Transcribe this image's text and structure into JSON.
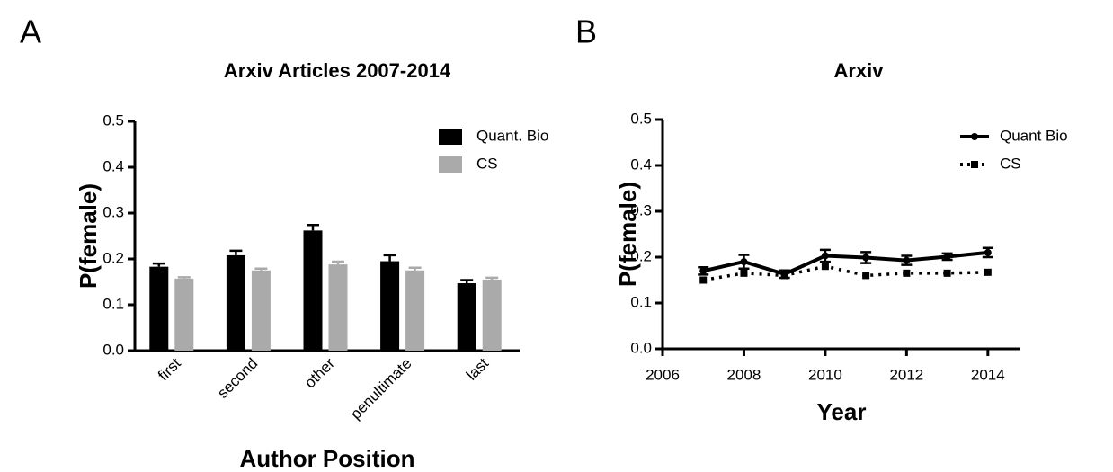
{
  "chart_data": [
    {
      "type": "bar",
      "panel": "A",
      "title": "Arxiv Articles 2007-2014",
      "x_label": "Author Position",
      "y_label": "P(female)",
      "categories": [
        "first",
        "second",
        "other",
        "penultimate",
        "last"
      ],
      "series": [
        {
          "name": "Quant. Bio",
          "color": "#000000",
          "values": [
            0.183,
            0.208,
            0.262,
            0.195,
            0.147
          ],
          "errors": [
            0.007,
            0.01,
            0.012,
            0.013,
            0.007
          ]
        },
        {
          "name": "CS",
          "color": "#aaaaaa",
          "values": [
            0.157,
            0.175,
            0.188,
            0.175,
            0.155
          ],
          "errors": [
            0.003,
            0.004,
            0.006,
            0.006,
            0.004
          ]
        }
      ],
      "ylim": [
        0,
        0.5
      ],
      "yticks": [
        {
          "value": 0,
          "label": "0.0"
        },
        0.1,
        0.2,
        0.3,
        0.4,
        0.5
      ],
      "legend": "top-right"
    },
    {
      "type": "line",
      "panel": "B",
      "title": "Arxiv",
      "x_label": "Year",
      "y_label": "P(female)",
      "x": [
        2007,
        2008,
        2009,
        2010,
        2011,
        2012,
        2013,
        2014
      ],
      "series": [
        {
          "name": "Quant Bio",
          "color": "#000000",
          "dash": false,
          "values": [
            0.17,
            0.19,
            0.163,
            0.203,
            0.199,
            0.193,
            0.201,
            0.21
          ],
          "errors": [
            0.008,
            0.015,
            0.008,
            0.013,
            0.012,
            0.01,
            0.007,
            0.01
          ]
        },
        {
          "name": "CS",
          "color": "#000000",
          "dash": true,
          "values": [
            0.15,
            0.165,
            0.16,
            0.18,
            0.16,
            0.165,
            0.165,
            0.167
          ]
        }
      ],
      "xlim": [
        2006,
        2014.8
      ],
      "xticks": [
        2006,
        2008,
        2010,
        2012,
        2014
      ],
      "ylim": [
        0,
        0.5
      ],
      "yticks": [
        {
          "value": 0,
          "label": "0.0"
        },
        0.1,
        0.2,
        0.3,
        0.4,
        0.5
      ],
      "legend": "top-right"
    }
  ]
}
